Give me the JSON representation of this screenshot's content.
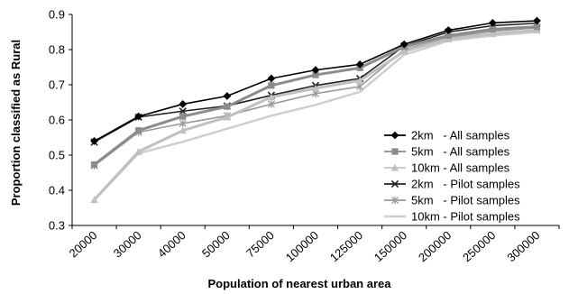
{
  "chart_data": {
    "type": "line",
    "xlabel": "Population of nearest urban area",
    "ylabel": "Proportion classified as Rural",
    "categories": [
      "20000",
      "30000",
      "40000",
      "50000",
      "75000",
      "100000",
      "125000",
      "150000",
      "200000",
      "250000",
      "300000"
    ],
    "ylim": [
      0.3,
      0.9
    ],
    "yticks": [
      "0.3",
      "0.4",
      "0.5",
      "0.6",
      "0.7",
      "0.8",
      "0.9"
    ],
    "grid": false,
    "legend_position": "right",
    "series": [
      {
        "name": "2km   - All samples",
        "color": "#000000",
        "marker": "diamond",
        "values": [
          0.54,
          0.61,
          0.645,
          0.668,
          0.718,
          0.742,
          0.758,
          0.815,
          0.855,
          0.876,
          0.882
        ]
      },
      {
        "name": "5km   - All samples",
        "color": "#8c8c8c",
        "marker": "square",
        "values": [
          0.473,
          0.57,
          0.61,
          0.638,
          0.698,
          0.728,
          0.748,
          0.808,
          0.84,
          0.858,
          0.865
        ]
      },
      {
        "name": "10km - All samples",
        "color": "#c0c0c0",
        "marker": "triangle",
        "values": [
          0.373,
          0.51,
          0.57,
          0.608,
          0.665,
          0.69,
          0.712,
          0.795,
          0.83,
          0.845,
          0.855
        ]
      },
      {
        "name": "2km   - Pilot samples",
        "color": "#222222",
        "marker": "x",
        "values": [
          0.537,
          0.608,
          0.625,
          0.64,
          0.67,
          0.698,
          0.718,
          0.81,
          0.85,
          0.868,
          0.875
        ]
      },
      {
        "name": "5km   - Pilot samples",
        "color": "#9a9a9a",
        "marker": "star",
        "values": [
          0.47,
          0.565,
          0.59,
          0.612,
          0.645,
          0.675,
          0.695,
          0.8,
          0.835,
          0.852,
          0.862
        ]
      },
      {
        "name": "10km - Pilot samples",
        "color": "#cdcdcd",
        "marker": "none",
        "values": [
          0.372,
          0.505,
          0.538,
          0.575,
          0.612,
          0.643,
          0.68,
          0.785,
          0.825,
          0.84,
          0.85
        ]
      }
    ]
  }
}
